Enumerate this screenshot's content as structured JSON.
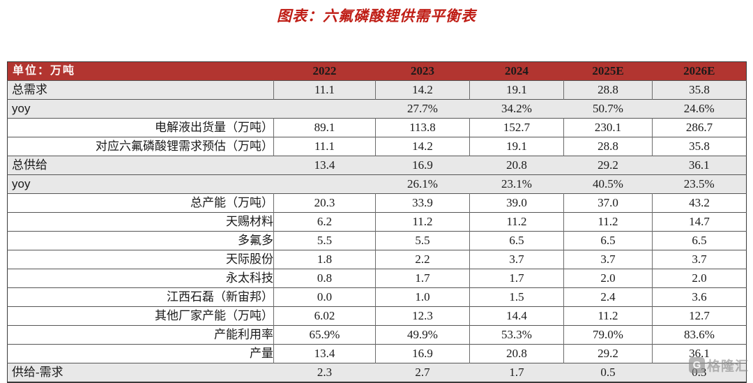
{
  "colors": {
    "title_red": "#bf1d15",
    "header_bg": "#b23530",
    "header_text": "#f2d9d5",
    "gray_row_bg": "#e8e8e8",
    "border": "#555555"
  },
  "watermark": {
    "logo_letter": "G",
    "text": "格隆汇"
  },
  "chart_data": {
    "type": "table",
    "title": "图表：六氟磷酸锂供需平衡表",
    "unit_label": "单位：万吨",
    "columns": [
      "2022",
      "2023",
      "2024",
      "2025E",
      "2026E"
    ],
    "rows": [
      {
        "label": "总需求",
        "type": "summary-bordered",
        "values": [
          "11.1",
          "14.2",
          "19.1",
          "28.8",
          "35.8"
        ]
      },
      {
        "label": "yoy",
        "type": "yoy",
        "values": [
          "",
          "27.7%",
          "34.2%",
          "50.7%",
          "24.6%"
        ]
      },
      {
        "label": "电解液出货量（万吨）",
        "type": "detail",
        "values": [
          "89.1",
          "113.8",
          "152.7",
          "230.1",
          "286.7"
        ]
      },
      {
        "label": "对应六氟磷酸锂需求预估（万吨）",
        "type": "detail",
        "values": [
          "11.1",
          "14.2",
          "19.1",
          "28.8",
          "35.8"
        ]
      },
      {
        "label": "总供给",
        "type": "summary",
        "values": [
          "13.4",
          "16.9",
          "20.8",
          "29.2",
          "36.1"
        ]
      },
      {
        "label": "yoy",
        "type": "yoy",
        "values": [
          "",
          "26.1%",
          "23.1%",
          "40.5%",
          "23.5%"
        ]
      },
      {
        "label": "总产能（万吨）",
        "type": "detail",
        "values": [
          "20.3",
          "33.9",
          "39.0",
          "37.0",
          "43.2"
        ]
      },
      {
        "label": "天赐材料",
        "type": "detail",
        "values": [
          "6.2",
          "11.2",
          "11.2",
          "11.2",
          "14.7"
        ]
      },
      {
        "label": "多氟多",
        "type": "detail",
        "values": [
          "5.5",
          "5.5",
          "6.5",
          "6.5",
          "6.5"
        ]
      },
      {
        "label": "天际股份",
        "type": "detail",
        "values": [
          "1.8",
          "2.2",
          "3.7",
          "3.7",
          "3.7"
        ]
      },
      {
        "label": "永太科技",
        "type": "detail",
        "values": [
          "0.8",
          "1.7",
          "1.7",
          "2.0",
          "2.0"
        ]
      },
      {
        "label": "江西石磊（新宙邦）",
        "type": "detail",
        "values": [
          "0.0",
          "1.0",
          "1.5",
          "2.4",
          "3.6"
        ]
      },
      {
        "label": "其他厂家产能（万吨）",
        "type": "detail",
        "values": [
          "6.02",
          "12.3",
          "14.4",
          "11.2",
          "12.7"
        ]
      },
      {
        "label": "产能利用率",
        "type": "detail",
        "values": [
          "65.9%",
          "49.9%",
          "53.3%",
          "79.0%",
          "83.6%"
        ]
      },
      {
        "label": "产量",
        "type": "detail",
        "values": [
          "13.4",
          "16.9",
          "20.8",
          "29.2",
          "36.1"
        ]
      },
      {
        "label": "供给-需求",
        "type": "summary",
        "values": [
          "2.3",
          "2.7",
          "1.7",
          "0.5",
          "0.3"
        ]
      }
    ]
  }
}
